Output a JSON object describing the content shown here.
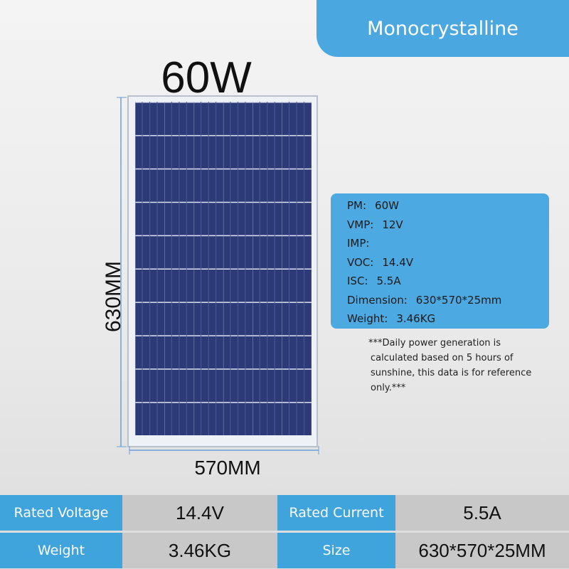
{
  "header": {
    "title": "Monocrystalline"
  },
  "power": "60W",
  "dimensions": {
    "height": "630MM",
    "width": "570MM"
  },
  "specs": [
    {
      "label": "PM:",
      "value": "60W"
    },
    {
      "label": "VMP:",
      "value": "12V"
    },
    {
      "label": "IMP:"
    },
    {
      "label": "VOC:",
      "value": "14.4V"
    },
    {
      "label": "ISC:",
      "value": "5.5A"
    },
    {
      "label": "Dimension:",
      "value": "630*570*25mm"
    },
    {
      "label": "Weight:",
      "value": "3.46KG"
    }
  ],
  "note": [
    "***Daily power generation is",
    "calculated based on 5 hours of",
    "sunshine, this data is for reference",
    "only.***"
  ],
  "table": {
    "rows": [
      [
        "Rated Voltage",
        "14.4V",
        "Rated Current",
        "5.5A"
      ],
      [
        "Weight",
        "3.46KG",
        "Size",
        "630*570*25MM"
      ]
    ]
  }
}
